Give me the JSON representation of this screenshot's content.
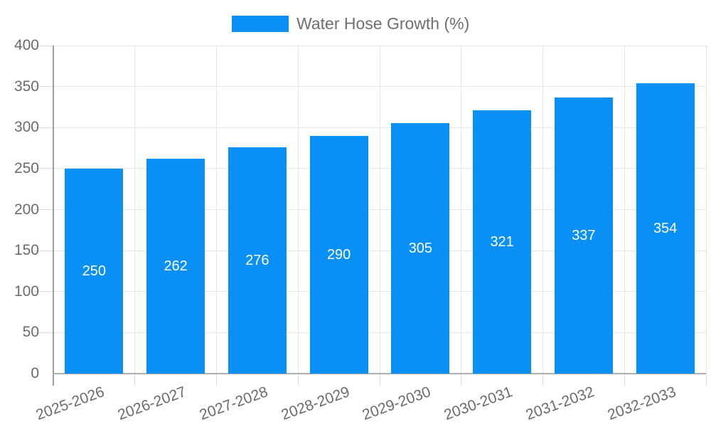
{
  "legend": {
    "label": "Water Hose Growth (%)"
  },
  "chart_data": {
    "type": "bar",
    "title": "Water Hose Growth (%)",
    "categories": [
      "2025-2026",
      "2026-2027",
      "2027-2028",
      "2028-2029",
      "2029-2030",
      "2030-2031",
      "2031-2032",
      "2032-2033"
    ],
    "series": [
      {
        "name": "Water Hose Growth (%)",
        "values": [
          250,
          262,
          276,
          290,
          305,
          321,
          337,
          354
        ]
      }
    ],
    "xlabel": "",
    "ylabel": "",
    "ylim": [
      0,
      400
    ],
    "ytick_step": 50,
    "yticks": [
      0,
      50,
      100,
      150,
      200,
      250,
      300,
      350,
      400
    ],
    "value_labels_position": "inside-center",
    "legend_position": "top",
    "grid": true,
    "bar_color": "#0a90f5",
    "value_label_color": "#ffffff",
    "axis_color": "#9e9e9e",
    "gridline_color": "#e6e6e6",
    "tick_label_color": "#6b6b6b"
  }
}
